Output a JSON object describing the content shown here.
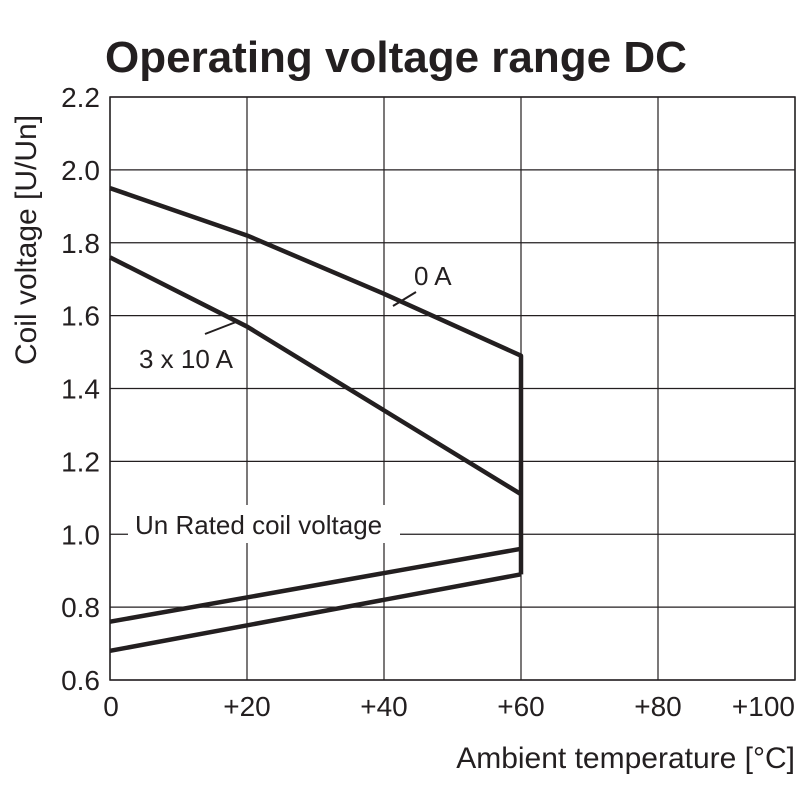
{
  "chart_data": {
    "type": "line",
    "title": "Operating voltage range DC",
    "xlabel": "Ambient temperature [°C]",
    "ylabel": "Coil voltage [U/Un]",
    "xlim": [
      0,
      100
    ],
    "ylim": [
      0.6,
      2.2
    ],
    "x_ticks": [
      0,
      20,
      40,
      60,
      80,
      100
    ],
    "x_tick_labels": [
      "0",
      "+20",
      "+40",
      "+60",
      "+80",
      "+100"
    ],
    "y_ticks": [
      0.6,
      0.8,
      1.0,
      1.2,
      1.4,
      1.6,
      1.8,
      2.0,
      2.2
    ],
    "y_tick_labels": [
      "0.6",
      "0.8",
      "1.0",
      "1.2",
      "1.4",
      "1.6",
      "1.8",
      "2.0",
      "2.2"
    ],
    "grid": true,
    "line_color": "#231f20",
    "series": [
      {
        "name": "0 A",
        "x": [
          0,
          20,
          40,
          60,
          60
        ],
        "y": [
          1.95,
          1.82,
          1.66,
          1.49,
          0.89
        ]
      },
      {
        "name": "3 x 10 A",
        "x": [
          0,
          20,
          40,
          60
        ],
        "y": [
          1.76,
          1.57,
          1.34,
          1.11
        ]
      },
      {
        "x": [
          0,
          60
        ],
        "y": [
          0.76,
          0.96
        ]
      },
      {
        "x": [
          0,
          60
        ],
        "y": [
          0.68,
          0.89
        ]
      }
    ],
    "annotations": [
      {
        "text": "0 A"
      },
      {
        "text": "3 x 10 A"
      },
      {
        "text": "Un Rated coil voltage"
      }
    ]
  }
}
